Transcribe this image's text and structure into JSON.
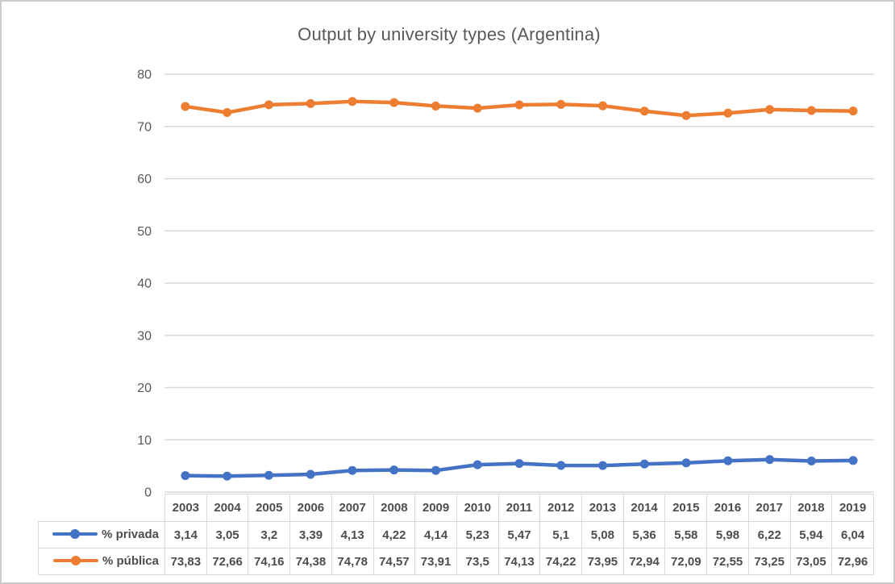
{
  "chart": {
    "title": "Output by university types (Argentina)"
  },
  "colors": {
    "series_privada": "#4472C4",
    "series_publica": "#ED7D31",
    "gridline": "#D9D9D9",
    "axis_text": "#595959",
    "table_text": "#4d4d4d",
    "table_border": "#d9d9d9",
    "frame_border": "#cbcbcb"
  },
  "chart_data": {
    "type": "line",
    "title": "Output by university types (Argentina)",
    "categories": [
      "2003",
      "2004",
      "2005",
      "2006",
      "2007",
      "2008",
      "2009",
      "2010",
      "2011",
      "2012",
      "2013",
      "2014",
      "2015",
      "2016",
      "2017",
      "2018",
      "2019"
    ],
    "series": [
      {
        "name": "% privada",
        "color": "#4472C4",
        "values": [
          3.14,
          3.05,
          3.2,
          3.39,
          4.13,
          4.22,
          4.14,
          5.23,
          5.47,
          5.1,
          5.08,
          5.36,
          5.58,
          5.98,
          6.22,
          5.94,
          6.04
        ],
        "display": [
          "3,14",
          "3,05",
          "3,2",
          "3,39",
          "4,13",
          "4,22",
          "4,14",
          "5,23",
          "5,47",
          "5,1",
          "5,08",
          "5,36",
          "5,58",
          "5,98",
          "6,22",
          "5,94",
          "6,04"
        ]
      },
      {
        "name": "% pública",
        "color": "#ED7D31",
        "values": [
          73.83,
          72.66,
          74.16,
          74.38,
          74.78,
          74.57,
          73.91,
          73.5,
          74.13,
          74.22,
          73.95,
          72.94,
          72.09,
          72.55,
          73.25,
          73.05,
          72.96
        ],
        "display": [
          "73,83",
          "72,66",
          "74,16",
          "74,38",
          "74,78",
          "74,57",
          "73,91",
          "73,5",
          "74,13",
          "74,22",
          "73,95",
          "72,94",
          "72,09",
          "72,55",
          "73,25",
          "73,05",
          "72,96"
        ]
      }
    ],
    "ylim": [
      0,
      80
    ],
    "ytick_step": 10,
    "yticks": [
      "0",
      "10",
      "20",
      "30",
      "40",
      "50",
      "60",
      "70",
      "80"
    ],
    "xlabel": "",
    "ylabel": "",
    "grid": true,
    "legend_position": "data-table-left",
    "marker": "circle"
  }
}
